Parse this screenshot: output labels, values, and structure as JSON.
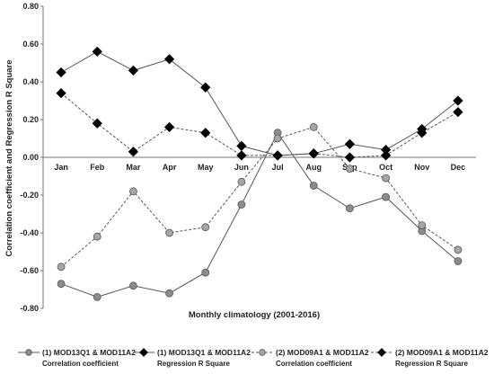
{
  "chart_data": {
    "type": "line",
    "xlabel": "Monthly climatology (2001-2016)",
    "ylabel": "Correlation coefficient and Regression R Square",
    "categories": [
      "Jan",
      "Feb",
      "Mar",
      "Apr",
      "May",
      "Jun",
      "Jul",
      "Aug",
      "Sep",
      "Oct",
      "Nov",
      "Dec"
    ],
    "ylim": [
      -0.8,
      0.8
    ],
    "yticks": [
      "0.80",
      "0.60",
      "0.40",
      "0.20",
      "0.00",
      "-0.20",
      "-0.40",
      "-0.60",
      "-0.80"
    ],
    "grid": false,
    "legend_position": "bottom",
    "series": [
      {
        "legend_line1": "(1) MOD13Q1  & MOD11A2",
        "legend_line2": "Correlation coefficient",
        "values": [
          -0.67,
          -0.74,
          -0.68,
          -0.72,
          -0.61,
          -0.25,
          0.13,
          -0.15,
          -0.27,
          -0.21,
          -0.39,
          -0.55
        ],
        "line_style": "solid",
        "marker": "circle",
        "marker_color": "#8c8c8c",
        "line_color": "#555555"
      },
      {
        "legend_line1": "(1) MOD13Q1 & MOD11A2",
        "legend_line2": "Regression R Square",
        "values": [
          0.45,
          0.56,
          0.46,
          0.52,
          0.37,
          0.06,
          0.01,
          0.02,
          0.07,
          0.04,
          0.15,
          0.3
        ],
        "line_style": "solid",
        "marker": "diamond",
        "marker_color": "#000000",
        "line_color": "#555555"
      },
      {
        "legend_line1": "(2) MOD09A1 & MOD11A2",
        "legend_line2": "Correlation coefficient",
        "values": [
          -0.58,
          -0.42,
          -0.18,
          -0.4,
          -0.37,
          -0.13,
          0.1,
          0.16,
          -0.06,
          -0.11,
          -0.36,
          -0.49
        ],
        "line_style": "dashed",
        "marker": "circle",
        "marker_color": "#a6a6a6",
        "line_color": "#555555"
      },
      {
        "legend_line1": "(2) MOD09A1 & MOD11A2",
        "legend_line2": "Regression R Square",
        "values": [
          0.34,
          0.18,
          0.03,
          0.16,
          0.13,
          0.01,
          0.01,
          0.02,
          0.0,
          0.01,
          0.13,
          0.24
        ],
        "line_style": "dashed",
        "marker": "diamond",
        "marker_color": "#000000",
        "line_color": "#555555"
      }
    ]
  }
}
